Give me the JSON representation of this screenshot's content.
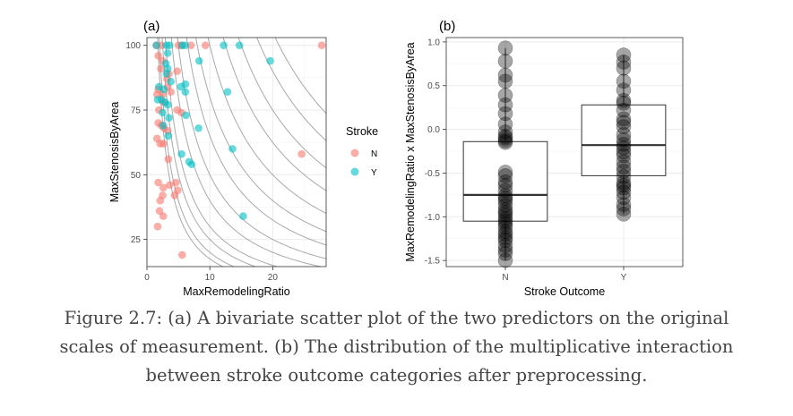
{
  "colors": {
    "N": "#F8766D",
    "Y": "#00BFC4",
    "grid_major": "#EBEBEB",
    "grid_minor": "#F3F3F3",
    "contour": "#A9A9A9",
    "axis_text": "#4D4D4D",
    "caption": "#444444"
  },
  "caption": {
    "line1": "Figure 2.7: (a) A bivariate scatter plot of the two predictors on the original",
    "line2": "scales of measurement. (b) The distribution of the multiplicative interaction",
    "line3": "between stroke outcome categories after preprocessing."
  },
  "chart_data": [
    {
      "panel": "(a)",
      "type": "scatter",
      "xlabel": "MaxRemodelingRatio",
      "ylabel": "MaxStenosisByArea",
      "xlim": [
        0,
        28.5
      ],
      "ylim": [
        14.5,
        103
      ],
      "xticks": [
        0,
        10,
        20
      ],
      "yticks": [
        25,
        50,
        75,
        100
      ],
      "grid": true,
      "legend": {
        "title": "Stroke",
        "position": "right",
        "entries": [
          "N",
          "Y"
        ]
      },
      "contour_levels": [
        175,
        200,
        250,
        300,
        400,
        500,
        650,
        800,
        1000,
        1250,
        1500,
        1800,
        2100
      ],
      "series": [
        {
          "name": "N",
          "points": [
            [
              1.5,
              100
            ],
            [
              2.3,
              100
            ],
            [
              5,
              100
            ],
            [
              5.5,
              100
            ],
            [
              7,
              100
            ],
            [
              9.3,
              100
            ],
            [
              27.8,
              100
            ],
            [
              1.8,
              96
            ],
            [
              2.5,
              94
            ],
            [
              2.2,
              91
            ],
            [
              3.5,
              89
            ],
            [
              3.2,
              87
            ],
            [
              4.8,
              90
            ],
            [
              1.8,
              83
            ],
            [
              2.5,
              81
            ],
            [
              3.3,
              84
            ],
            [
              3.8,
              82
            ],
            [
              1.6,
              81
            ],
            [
              2.6,
              78
            ],
            [
              1.9,
              75
            ],
            [
              4.8,
              75
            ],
            [
              5.5,
              74
            ],
            [
              1.8,
              70
            ],
            [
              2.3,
              69
            ],
            [
              2.7,
              68
            ],
            [
              3.3,
              67
            ],
            [
              1.6,
              64
            ],
            [
              2.1,
              62
            ],
            [
              2.6,
              62
            ],
            [
              24.6,
              58
            ],
            [
              3.4,
              56
            ],
            [
              1.8,
              47
            ],
            [
              3.6,
              46
            ],
            [
              4.6,
              47
            ],
            [
              2.6,
              45
            ],
            [
              4.9,
              44
            ],
            [
              2.5,
              42
            ],
            [
              2.1,
              40
            ],
            [
              4.4,
              42
            ],
            [
              2,
              36
            ],
            [
              2.6,
              34
            ],
            [
              1.7,
              30
            ],
            [
              5.6,
              19
            ]
          ]
        },
        {
          "name": "Y",
          "points": [
            [
              1.5,
              100
            ],
            [
              3.1,
              100
            ],
            [
              3.6,
              100
            ],
            [
              5.6,
              100
            ],
            [
              6.1,
              100
            ],
            [
              12.2,
              100
            ],
            [
              14.7,
              100
            ],
            [
              3.3,
              97
            ],
            [
              3,
              93
            ],
            [
              3.3,
              91
            ],
            [
              8.3,
              94
            ],
            [
              19.6,
              94
            ],
            [
              3.1,
              89
            ],
            [
              3.8,
              86
            ],
            [
              1.9,
              84
            ],
            [
              2.7,
              83
            ],
            [
              5.4,
              84
            ],
            [
              6.1,
              85
            ],
            [
              6.1,
              82
            ],
            [
              12.8,
              82
            ],
            [
              1.7,
              79
            ],
            [
              2.3,
              79
            ],
            [
              2.9,
              78
            ],
            [
              3.3,
              77
            ],
            [
              2.5,
              74
            ],
            [
              6.2,
              73
            ],
            [
              3.5,
              72
            ],
            [
              2.6,
              69
            ],
            [
              8.2,
              68
            ],
            [
              3.4,
              65
            ],
            [
              13.6,
              60
            ],
            [
              5.5,
              58
            ],
            [
              6.7,
              55
            ],
            [
              7.1,
              54
            ],
            [
              15.3,
              34
            ]
          ]
        }
      ]
    },
    {
      "panel": "(b)",
      "type": "box",
      "xlabel": "Stroke Outcome",
      "ylabel": "MaxRemodelingRatio x MaxStenosisByArea",
      "categories": [
        "N",
        "Y"
      ],
      "ylim": [
        -1.57,
        1.05
      ],
      "yticks": [
        -1.5,
        -1.0,
        -0.5,
        0.0,
        0.5,
        1.0
      ],
      "grid": true,
      "boxes": [
        {
          "name": "N",
          "q1": -1.05,
          "median": -0.75,
          "q3": -0.14,
          "whisker_low": -1.5,
          "whisker_high": 0.93
        },
        {
          "name": "Y",
          "q1": -0.53,
          "median": -0.18,
          "q3": 0.28,
          "whisker_low": -0.97,
          "whisker_high": 0.85
        }
      ],
      "series": [
        {
          "name": "N",
          "values": [
            0.93,
            0.78,
            0.62,
            0.55,
            0.39,
            0.28,
            0.18,
            0.06,
            -0.03,
            -0.08,
            -0.1,
            -0.13,
            -0.15,
            -0.49,
            -0.53,
            -0.6,
            -0.64,
            -0.7,
            -0.76,
            -0.79,
            -0.82,
            -0.87,
            -0.92,
            -0.95,
            -0.98,
            -1.02,
            -1.05,
            -1.08,
            -1.12,
            -1.17,
            -1.2,
            -1.24,
            -1.27,
            -1.33,
            -1.38,
            -1.42,
            -1.5
          ]
        },
        {
          "name": "Y",
          "values": [
            0.85,
            0.77,
            0.7,
            0.55,
            0.45,
            0.33,
            0.3,
            0.22,
            0.12,
            0.08,
            0.03,
            -0.06,
            -0.12,
            -0.17,
            -0.21,
            -0.26,
            -0.3,
            -0.37,
            -0.43,
            -0.48,
            -0.54,
            -0.61,
            -0.64,
            -0.67,
            -0.72,
            -0.78,
            -0.86,
            -0.91,
            -0.97
          ]
        }
      ]
    }
  ]
}
